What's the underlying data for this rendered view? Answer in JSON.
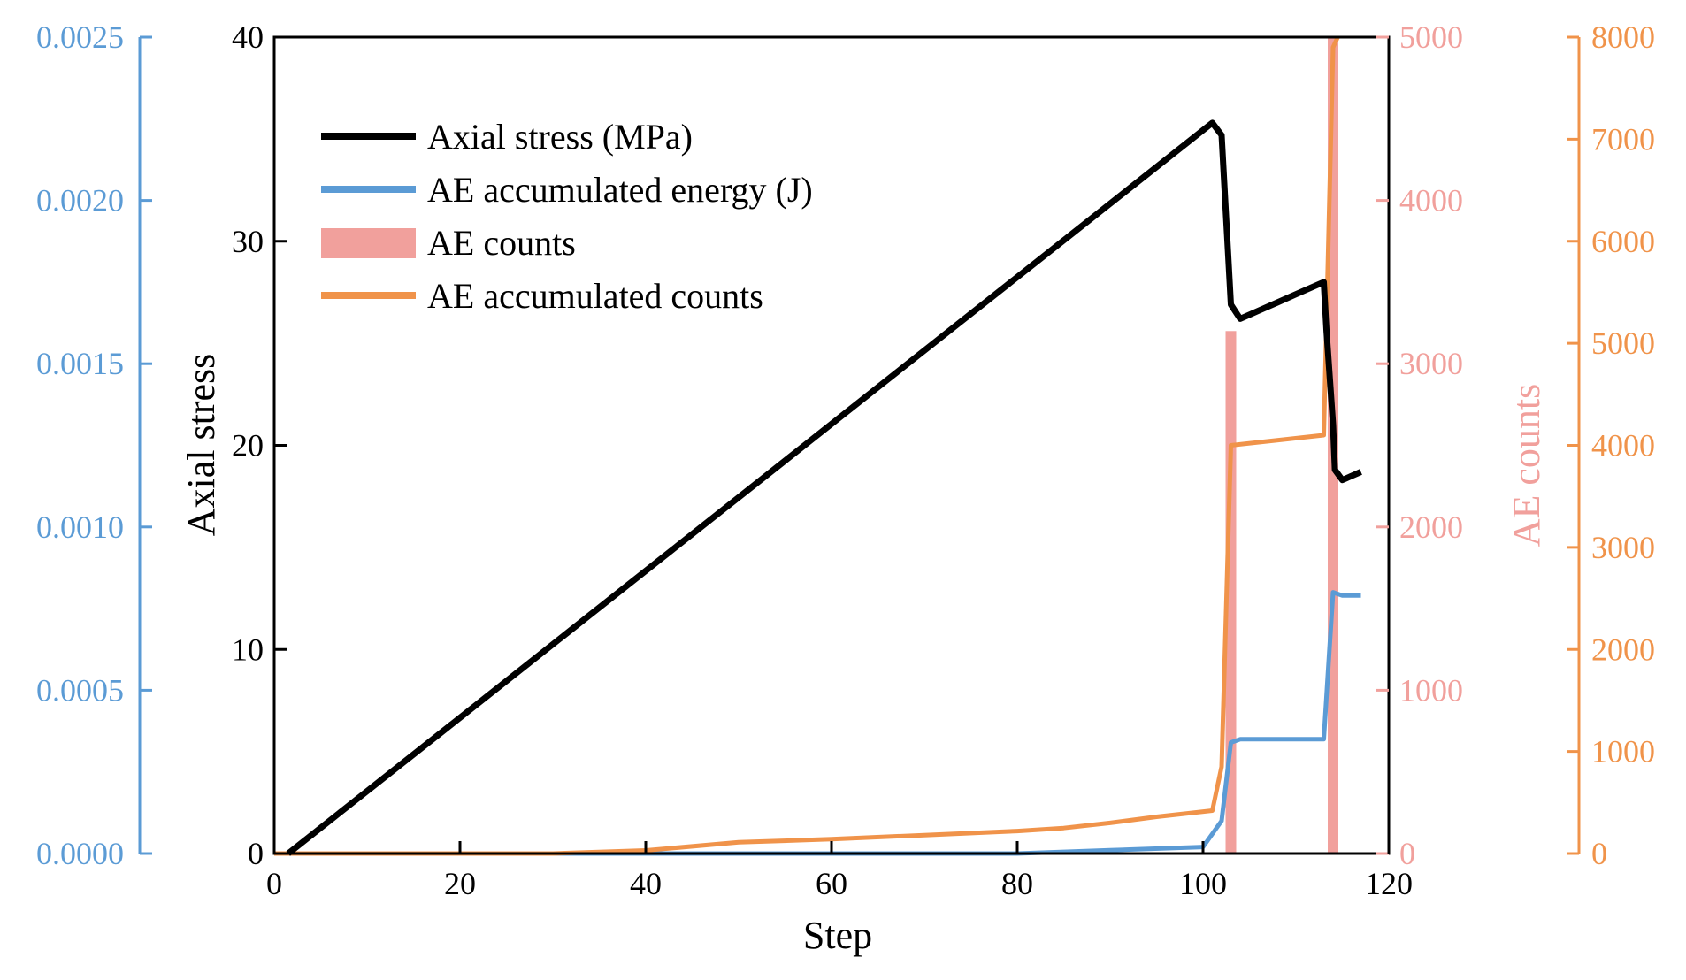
{
  "chart_data": {
    "type": "line",
    "title": "",
    "xlabel": "Step",
    "xlim": [
      0,
      120
    ],
    "x_ticks": [
      "0",
      "20",
      "40",
      "60",
      "80",
      "100",
      "120"
    ],
    "axes": {
      "stress": {
        "ylabel": "Axial stress",
        "ylim": [
          0,
          40
        ],
        "ticks": [
          "0",
          "10",
          "20",
          "30",
          "40"
        ],
        "color": "#000000"
      },
      "energy": {
        "ylabel": "",
        "ylim": [
          0,
          0.0025
        ],
        "ticks": [
          "0.0000",
          "0.0005",
          "0.0010",
          "0.0015",
          "0.0020",
          "0.0025"
        ],
        "color": "#5b9bd5"
      },
      "counts": {
        "ylabel": "AE counts",
        "ylim": [
          0,
          5000
        ],
        "ticks": [
          "0",
          "1000",
          "2000",
          "3000",
          "4000",
          "5000"
        ],
        "color": "#f1a09c"
      },
      "accum": {
        "ylabel": "",
        "ylim": [
          0,
          8000
        ],
        "ticks": [
          "0",
          "1000",
          "2000",
          "3000",
          "4000",
          "5000",
          "6000",
          "7000",
          "8000"
        ],
        "color": "#f0934a"
      }
    },
    "series": [
      {
        "name": "Axial stress (MPa)",
        "type": "line",
        "axis": "stress",
        "color": "#000000",
        "x": [
          1.5,
          101,
          102,
          103,
          104,
          106,
          108,
          110,
          113,
          113.3,
          114,
          114.2,
          115,
          116,
          117
        ],
        "y": [
          0,
          35.8,
          35.2,
          26.9,
          26.2,
          26.6,
          27.0,
          27.4,
          28.0,
          25.6,
          21.0,
          18.8,
          18.3,
          18.5,
          18.7
        ]
      },
      {
        "name": "AE accumulated energy (J)",
        "type": "line",
        "axis": "energy",
        "color": "#5b9bd5",
        "x": [
          0,
          40,
          80,
          90,
          100,
          102,
          103,
          104,
          113,
          114,
          115,
          117
        ],
        "y": [
          0,
          0,
          0,
          1e-05,
          2e-05,
          0.0001,
          0.00034,
          0.00035,
          0.00035,
          0.0008,
          0.00079,
          0.00079
        ]
      },
      {
        "name": "AE counts",
        "type": "bar",
        "axis": "counts",
        "color": "#f1a09c",
        "x": [
          103,
          114
        ],
        "y": [
          3200,
          5000
        ]
      },
      {
        "name": "AE accumulated counts",
        "type": "line",
        "axis": "accum",
        "color": "#f0934a",
        "x": [
          0,
          30,
          40,
          50,
          60,
          70,
          80,
          85,
          90,
          95,
          101,
          102,
          103,
          113,
          114,
          114.5
        ],
        "y": [
          0,
          0,
          30,
          110,
          140,
          180,
          220,
          250,
          300,
          360,
          420,
          850,
          4000,
          4100,
          7900,
          8000
        ]
      }
    ],
    "legend": {
      "position": "top-left",
      "entries": [
        "Axial stress (MPa)",
        "AE accumulated energy (J)",
        "AE counts",
        "AE accumulated counts"
      ]
    }
  }
}
